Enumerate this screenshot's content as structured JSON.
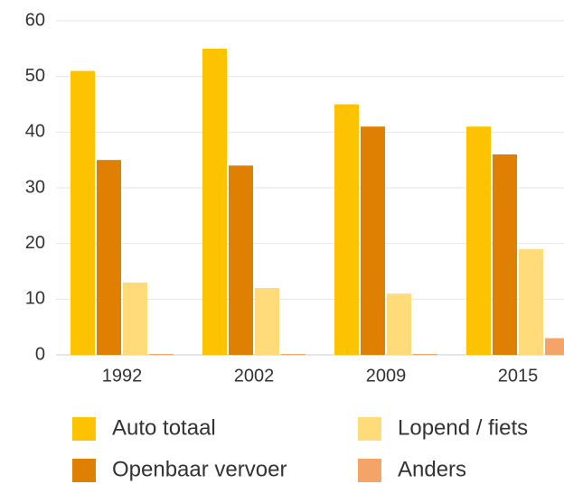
{
  "chart_data": {
    "type": "bar",
    "categories": [
      "1992",
      "2002",
      "2009",
      "2015"
    ],
    "series": [
      {
        "name": "Auto totaal",
        "color": "#fdc300",
        "values": [
          51,
          55,
          45,
          41
        ]
      },
      {
        "name": "Openbaar vervoer",
        "color": "#e08003",
        "values": [
          35,
          34,
          41,
          36
        ]
      },
      {
        "name": "Lopend / fiets",
        "color": "#ffdb79",
        "values": [
          13,
          12,
          11,
          19
        ]
      },
      {
        "name": "Anders",
        "color": "#f5a468",
        "values": [
          0,
          0,
          0,
          3
        ]
      }
    ],
    "ylim": [
      0,
      60
    ],
    "yticks": [
      0,
      10,
      20,
      30,
      40,
      50,
      60
    ],
    "grid": true,
    "legend": "bottom"
  }
}
